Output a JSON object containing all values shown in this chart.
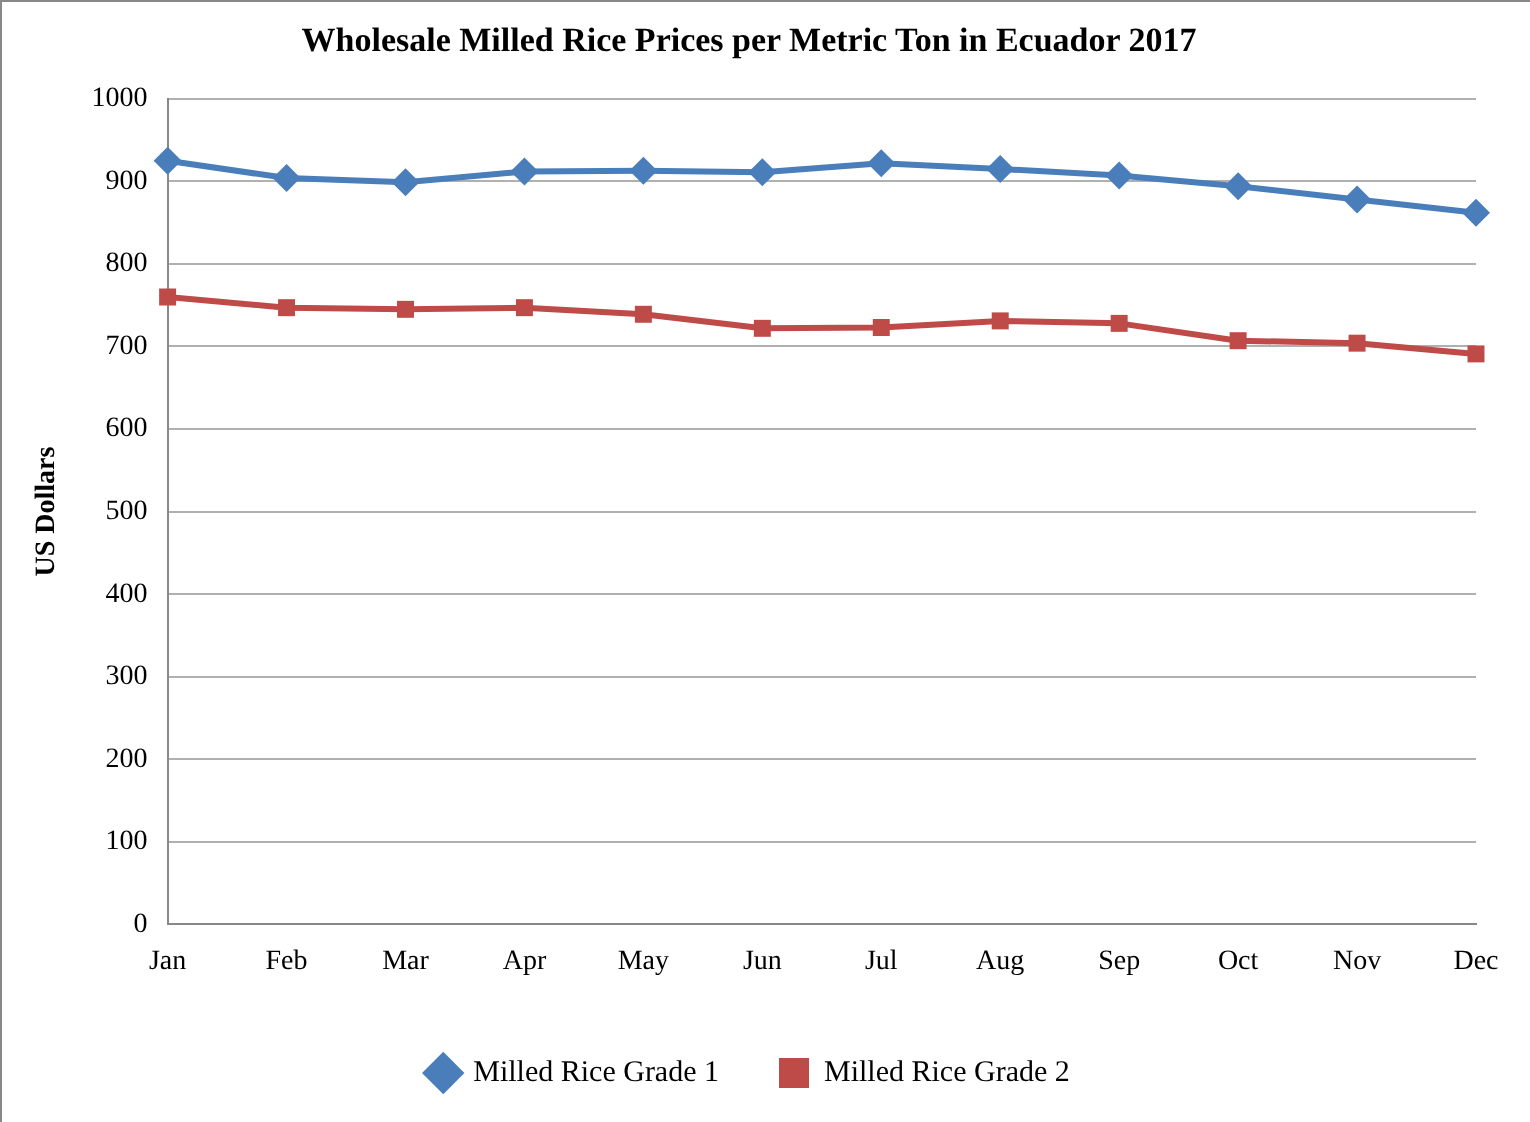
{
  "chart_data": {
    "type": "line",
    "title": "Wholesale Milled Rice Prices per Metric Ton in Ecuador 2017",
    "ylabel": "US Dollars",
    "categories": [
      "Jan",
      "Feb",
      "Mar",
      "Apr",
      "May",
      "Jun",
      "Jul",
      "Aug",
      "Sep",
      "Oct",
      "Nov",
      "Dec"
    ],
    "series": [
      {
        "name": "Milled Rice Grade 1",
        "color": "#4a7ebb",
        "marker": "diamond",
        "values": [
          925,
          904,
          899,
          912,
          913,
          911,
          922,
          915,
          907,
          894,
          878,
          862
        ]
      },
      {
        "name": "Milled Rice Grade 2",
        "color": "#be4b48",
        "marker": "square",
        "values": [
          760,
          747,
          745,
          747,
          739,
          722,
          723,
          731,
          728,
          707,
          704,
          691
        ]
      }
    ],
    "ylim": [
      0,
      1000
    ],
    "yticks": [
      0,
      100,
      200,
      300,
      400,
      500,
      600,
      700,
      800,
      900,
      1000
    ],
    "grid": "y",
    "legend": "bottom"
  }
}
